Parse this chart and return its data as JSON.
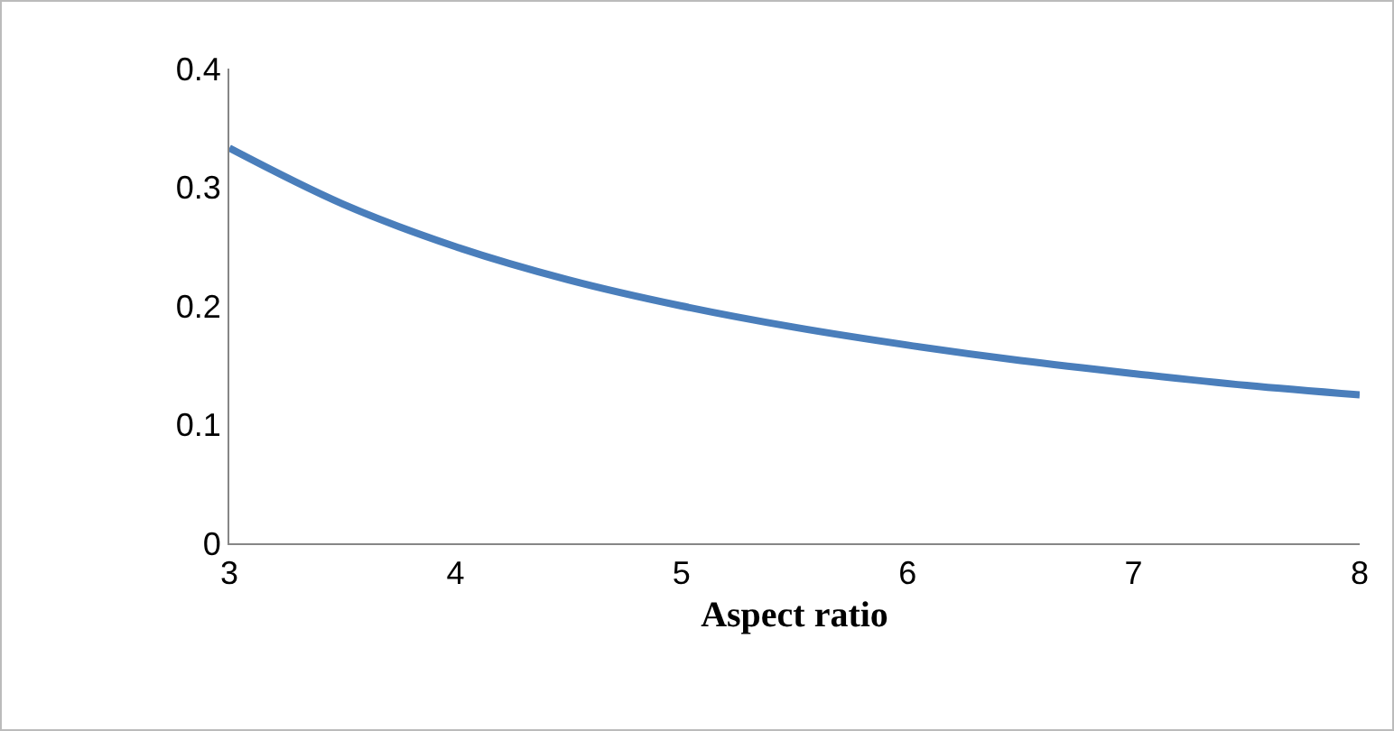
{
  "chart_data": {
    "type": "line",
    "xlabel": "Aspect ratio",
    "x": [
      3,
      3.5,
      4,
      4.5,
      5,
      5.5,
      6,
      6.5,
      7,
      7.5,
      8
    ],
    "series": [
      {
        "color": "#4a7ebb",
        "values": [
          0.333,
          0.286,
          0.25,
          0.222,
          0.2,
          0.182,
          0.167,
          0.154,
          0.143,
          0.133,
          0.125
        ]
      }
    ],
    "xlim": [
      3,
      8
    ],
    "xticks": [
      3,
      4,
      5,
      6,
      7,
      8
    ],
    "ylim": [
      0,
      0.4
    ],
    "yticks": [
      0,
      0.1,
      0.2,
      0.3,
      0.4
    ],
    "grid": false,
    "marker": "none",
    "line_style": "solid"
  }
}
